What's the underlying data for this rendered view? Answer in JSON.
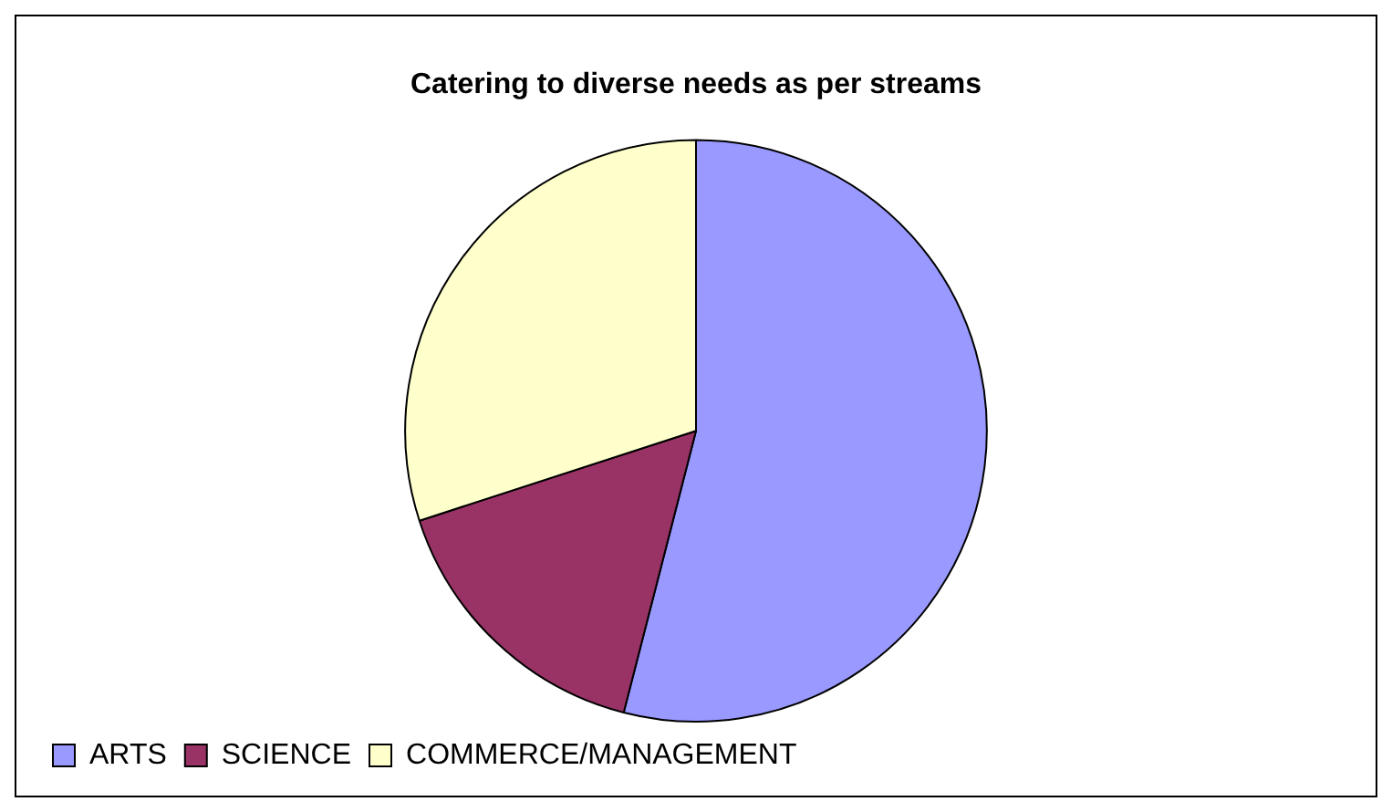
{
  "chart_data": {
    "type": "pie",
    "title": "Catering to diverse needs as per streams",
    "categories": [
      "ARTS",
      "SCIENCE",
      "COMMERCE/MANAGEMENT"
    ],
    "values": [
      54,
      16,
      30
    ],
    "colors": [
      "#9999ff",
      "#993366",
      "#ffffcc"
    ],
    "legend": "bottom left"
  }
}
